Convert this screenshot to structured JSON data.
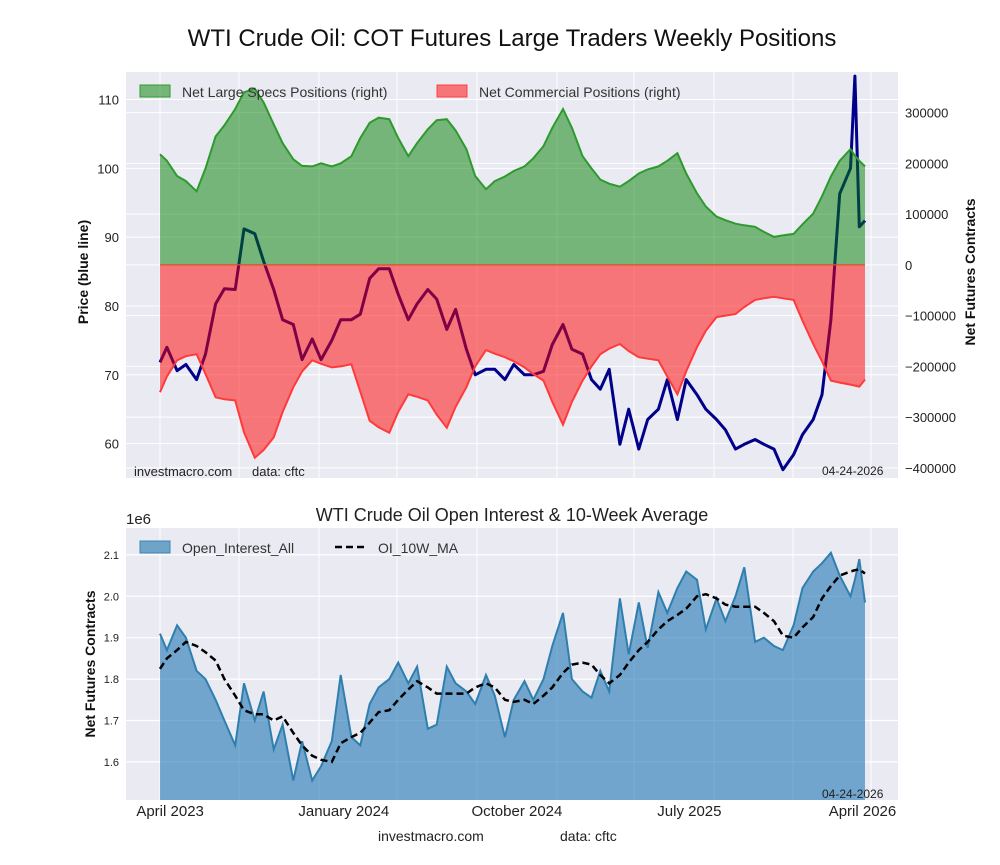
{
  "title": "WTI Crude Oil: COT Futures Large Traders Weekly Positions",
  "colors": {
    "specs": "#008000",
    "commercial": "#ff0000",
    "price": "#00008b",
    "open_interest": "#1f77b4",
    "ma": "#000000",
    "plot_bg": "#eaeaf2"
  },
  "chart_data": [
    {
      "type": "area",
      "ylabel_left": "Price (blue line)",
      "ylabel_right": "Net Futures Contracts",
      "ylim_left": [
        55,
        114
      ],
      "ylim_right": [
        -420000,
        380000
      ],
      "yticks_left": [
        60,
        70,
        80,
        90,
        100,
        110
      ],
      "yticks_right": [
        -400000,
        -300000,
        -200000,
        -100000,
        0,
        100000,
        200000,
        300000
      ],
      "grid": true,
      "legend_placement": "top-left",
      "watermark": "investmacro.com",
      "source": "data: cftc",
      "date_label": "04-24-2026",
      "dates": [
        "2023-04-04",
        "2023-04-15",
        "2023-05-01",
        "2023-05-15",
        "2023-06-01",
        "2023-06-15",
        "2023-07-01",
        "2023-07-15",
        "2023-08-01",
        "2023-08-15",
        "2023-09-01",
        "2023-09-15",
        "2023-10-01",
        "2023-10-15",
        "2023-11-01",
        "2023-11-15",
        "2023-12-01",
        "2023-12-15",
        "2024-01-01",
        "2024-01-15",
        "2024-02-01",
        "2024-02-15",
        "2024-03-01",
        "2024-03-15",
        "2024-04-01",
        "2024-04-15",
        "2024-05-01",
        "2024-05-15",
        "2024-06-01",
        "2024-06-15",
        "2024-07-01",
        "2024-07-15",
        "2024-08-01",
        "2024-08-15",
        "2024-09-01",
        "2024-09-15",
        "2024-10-01",
        "2024-10-15",
        "2024-11-01",
        "2024-11-15",
        "2024-12-01",
        "2024-12-15",
        "2025-01-01",
        "2025-01-15",
        "2025-02-01",
        "2025-02-15",
        "2025-03-01",
        "2025-03-15",
        "2025-04-01",
        "2025-04-15",
        "2025-05-01",
        "2025-05-15",
        "2025-06-01",
        "2025-06-15",
        "2025-07-01",
        "2025-07-15",
        "2025-08-01",
        "2025-08-15",
        "2025-09-01",
        "2025-09-15",
        "2025-10-01",
        "2025-10-15",
        "2025-11-01",
        "2025-11-15",
        "2025-12-01",
        "2025-12-15",
        "2026-01-01",
        "2026-01-15",
        "2026-02-01",
        "2026-02-15",
        "2026-03-01",
        "2026-03-15",
        "2026-04-01",
        "2026-04-08",
        "2026-04-15",
        "2026-04-24"
      ],
      "series": [
        {
          "name": "Net Large Specs Positions (right)",
          "axis": "right",
          "values": [
            218000,
            205000,
            175000,
            165000,
            145000,
            190000,
            253000,
            275000,
            307000,
            340000,
            347000,
            320000,
            277000,
            240000,
            208000,
            195000,
            194000,
            200000,
            194000,
            200000,
            214000,
            250000,
            280000,
            290000,
            287000,
            250000,
            214000,
            240000,
            267000,
            285000,
            287000,
            265000,
            228000,
            175000,
            149000,
            165000,
            174000,
            185000,
            194000,
            210000,
            234000,
            270000,
            307000,
            270000,
            214000,
            190000,
            168000,
            160000,
            154000,
            165000,
            180000,
            188000,
            194000,
            205000,
            220000,
            180000,
            141000,
            115000,
            95000,
            88000,
            81000,
            78000,
            75000,
            65000,
            55000,
            58000,
            61000,
            80000,
            101000,
            135000,
            174000,
            205000,
            228000,
            215000,
            205000,
            194000
          ]
        },
        {
          "name": "Net Commercial Positions (right)",
          "axis": "right",
          "values": [
            -251000,
            -220000,
            -188000,
            -180000,
            -176000,
            -215000,
            -261000,
            -265000,
            -267000,
            -330000,
            -380000,
            -365000,
            -340000,
            -290000,
            -241000,
            -210000,
            -188000,
            -195000,
            -202000,
            -200000,
            -196000,
            -250000,
            -307000,
            -320000,
            -331000,
            -290000,
            -255000,
            -260000,
            -267000,
            -295000,
            -321000,
            -280000,
            -241000,
            -200000,
            -168000,
            -175000,
            -182000,
            -190000,
            -202000,
            -215000,
            -228000,
            -270000,
            -315000,
            -270000,
            -228000,
            -200000,
            -176000,
            -165000,
            -156000,
            -170000,
            -182000,
            -185000,
            -188000,
            -220000,
            -255000,
            -210000,
            -162000,
            -130000,
            -103000,
            -100000,
            -97000,
            -83000,
            -69000,
            -66000,
            -63000,
            -66000,
            -69000,
            -110000,
            -156000,
            -190000,
            -228000,
            -232000,
            -236000,
            -238000,
            -240000,
            -226000
          ]
        },
        {
          "axis": "left",
          "values": [
            71.8,
            74,
            70.6,
            71.5,
            69.3,
            73,
            80.3,
            82.5,
            82.4,
            91.2,
            90.5,
            86.5,
            82.4,
            78,
            77.3,
            72.2,
            75.2,
            72.2,
            75,
            78,
            78,
            78.8,
            84,
            85.4,
            85.4,
            81.7,
            78,
            80.3,
            82.4,
            81,
            76.6,
            79.5,
            73.7,
            70,
            70.8,
            70.8,
            69.3,
            71.5,
            70,
            70,
            70.5,
            74.4,
            77.3,
            73.7,
            73,
            69.3,
            67.9,
            70.8,
            59.9,
            65,
            59.2,
            63.5,
            65,
            69.3,
            63.5,
            69.3,
            67.1,
            65,
            63.5,
            62,
            59.2,
            59.9,
            60.6,
            59.9,
            59.2,
            56.2,
            58.4,
            61.3,
            63.5,
            67.1,
            78,
            96.3,
            100,
            113.4,
            91.5,
            92.4
          ]
        }
      ]
    },
    {
      "type": "area",
      "title": "WTI Crude Oil Open Interest & 10-Week Average",
      "ylabel": "Net Futures Contracts",
      "y_offset_label": "1e6",
      "ylim": [
        1.508,
        2.165
      ],
      "yticks": [
        1.6,
        1.7,
        1.8,
        1.9,
        2.0,
        2.1
      ],
      "xticks": [
        {
          "date": "2023-04-01",
          "label": "April 2023"
        },
        {
          "date": "2024-01-01",
          "label": "January 2024"
        },
        {
          "date": "2024-10-01",
          "label": "October 2024"
        },
        {
          "date": "2025-07-01",
          "label": "July 2025"
        },
        {
          "date": "2026-04-01",
          "label": "April 2026"
        }
      ],
      "grid": true,
      "legend_placement": "top-left",
      "date_label": "04-24-2026",
      "series": [
        {
          "name": "Open_Interest_All",
          "values": [
            1.91,
            1.87,
            1.93,
            1.9,
            1.82,
            1.8,
            1.75,
            1.7,
            1.64,
            1.79,
            1.7,
            1.77,
            1.63,
            1.69,
            1.555,
            1.65,
            1.555,
            1.59,
            1.65,
            1.81,
            1.66,
            1.64,
            1.74,
            1.78,
            1.8,
            1.84,
            1.79,
            1.83,
            1.68,
            1.69,
            1.83,
            1.79,
            1.77,
            1.74,
            1.81,
            1.76,
            1.66,
            1.75,
            1.795,
            1.75,
            1.8,
            1.88,
            1.96,
            1.8,
            1.77,
            1.755,
            1.82,
            1.77,
            1.995,
            1.86,
            1.985,
            1.875,
            2.01,
            1.96,
            2.02,
            2.06,
            2.04,
            1.92,
            1.995,
            1.94,
            2.0,
            2.07,
            1.89,
            1.9,
            1.88,
            1.87,
            1.93,
            2.02,
            2.06,
            2.08,
            2.105,
            2.05,
            2.0,
            2.04,
            2.09,
            1.985
          ]
        },
        {
          "name": "OI_10W_MA",
          "values": [
            1.825,
            1.85,
            1.87,
            1.89,
            1.88,
            1.865,
            1.845,
            1.8,
            1.76,
            1.725,
            1.715,
            1.715,
            1.7,
            1.71,
            1.67,
            1.64,
            1.615,
            1.605,
            1.6,
            1.645,
            1.66,
            1.67,
            1.695,
            1.72,
            1.725,
            1.75,
            1.775,
            1.795,
            1.78,
            1.765,
            1.765,
            1.765,
            1.765,
            1.78,
            1.79,
            1.78,
            1.75,
            1.745,
            1.75,
            1.74,
            1.76,
            1.78,
            1.815,
            1.835,
            1.84,
            1.835,
            1.81,
            1.79,
            1.81,
            1.84,
            1.87,
            1.89,
            1.92,
            1.94,
            1.955,
            1.97,
            2.0,
            2.005,
            1.995,
            1.98,
            1.975,
            1.975,
            1.975,
            1.96,
            1.94,
            1.905,
            1.9,
            1.925,
            1.95,
            1.995,
            2.025,
            2.05,
            2.06,
            2.063,
            2.065,
            2.055
          ]
        }
      ]
    }
  ],
  "footer": {
    "site": "investmacro.com",
    "source": "data: cftc"
  }
}
